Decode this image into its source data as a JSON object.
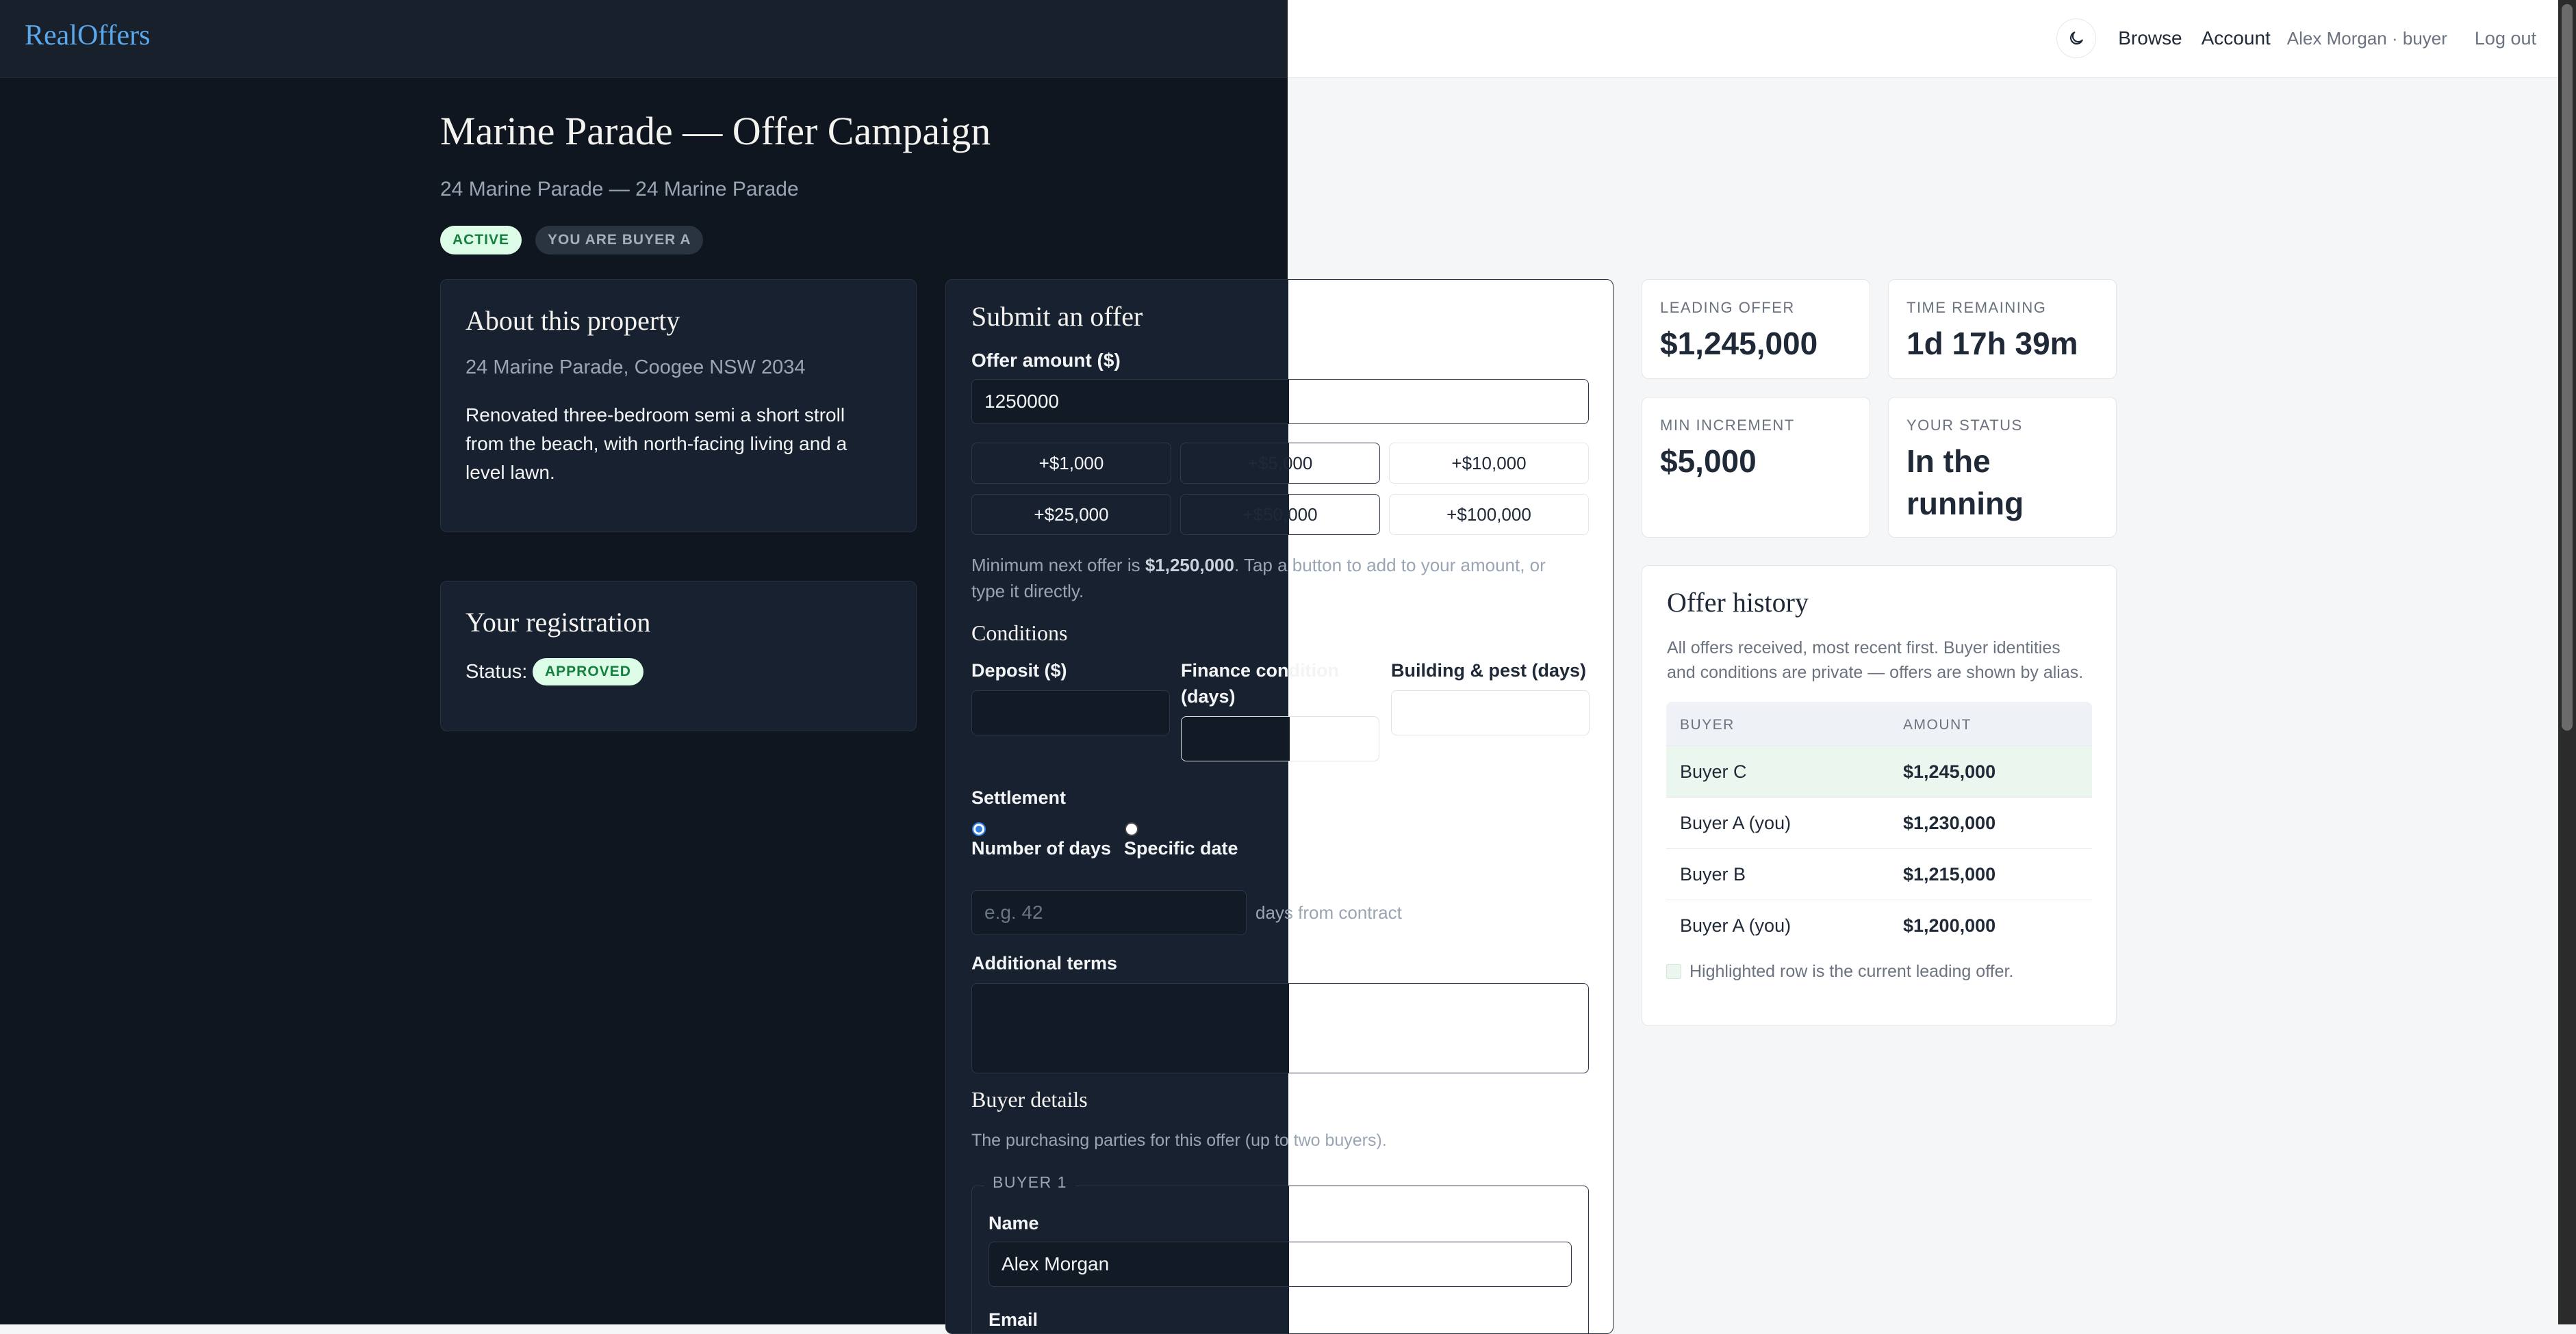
{
  "header": {
    "brand": "RealOffers",
    "nav": {
      "browse": "Browse",
      "account": "Account",
      "user": "Alex Morgan · buyer",
      "logout": "Log out"
    }
  },
  "campaign": {
    "title": "Marine Parade — Offer Campaign",
    "subtitle": "24 Marine Parade — 24 Marine Parade",
    "badge_status": "ACTIVE",
    "badge_role": "YOU ARE BUYER A"
  },
  "property": {
    "heading": "About this property",
    "address": "24 Marine Parade, Coogee NSW 2034",
    "desc_lines": [
      "Renovated three-bedroom semi a short stroll",
      "from the beach, with north-facing living and a",
      "level lawn."
    ]
  },
  "registration": {
    "heading": "Your registration",
    "status_label": "Status:",
    "status_value": "APPROVED"
  },
  "offer_form": {
    "heading": "Submit an offer",
    "amount_label": "Offer amount ($)",
    "amount_value": "1250000",
    "increments": [
      "+$1,000",
      "+$5,000",
      "+$10,000",
      "+$25,000",
      "+$50,000",
      "+$100,000"
    ],
    "hint_pre": "Minimum next offer is ",
    "hint_amount": "$1,250,000",
    "hint_post_1": ". Tap a button to add to your amount, or",
    "hint_post_2": "type it directly.",
    "conditions_heading": "Conditions",
    "deposit_label": "Deposit ($)",
    "finance_label_1": "Finance condition",
    "finance_label_2": "(days)",
    "building_label": "Building & pest (days)",
    "settlement_label": "Settlement",
    "radio_days": "Number of days",
    "radio_date": "Specific date",
    "days_placeholder": "e.g. 42",
    "days_suffix": "days from contract",
    "terms_label": "Additional terms",
    "buyer_details_heading": "Buyer details",
    "buyer_details_desc": "The purchasing parties for this offer (up to two buyers).",
    "buyer1_legend": "BUYER 1",
    "name_label": "Name",
    "name_value": "Alex Morgan",
    "email_label": "Email"
  },
  "stats": {
    "leading_label": "LEADING OFFER",
    "leading_value": "$1,245,000",
    "time_label": "TIME REMAINING",
    "time_value": "1d 17h 39m",
    "increment_label": "MIN INCREMENT",
    "increment_value": "$5,000",
    "status_label": "YOUR STATUS",
    "status_value_1": "In the",
    "status_value_2": "running"
  },
  "history": {
    "heading": "Offer history",
    "desc_1": "All offers received, most recent first. Buyer identities",
    "desc_2": "and conditions are private — offers are shown by alias.",
    "col_buyer": "BUYER",
    "col_amount": "AMOUNT",
    "rows": [
      {
        "buyer": "Buyer C",
        "amount": "$1,245,000"
      },
      {
        "buyer": "Buyer A (you)",
        "amount": "$1,230,000"
      },
      {
        "buyer": "Buyer B",
        "amount": "$1,215,000"
      },
      {
        "buyer": "Buyer A (you)",
        "amount": "$1,200,000"
      }
    ],
    "legend": "Highlighted row is the current leading offer."
  },
  "colors": {
    "accent": "#5aa7ea",
    "dark_bg": "#0f1620",
    "lead_row": "#eaf6ee",
    "approved": "#15803d"
  }
}
